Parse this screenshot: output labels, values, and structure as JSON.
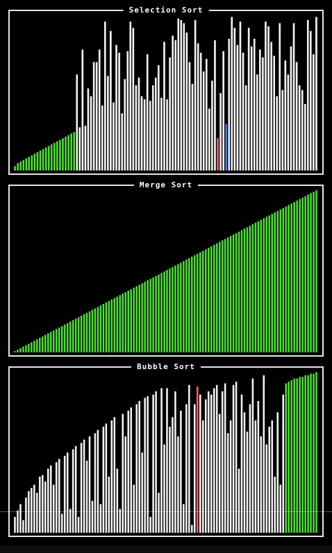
{
  "panels": [
    {
      "id": "selection",
      "title": "Selection Sort"
    },
    {
      "id": "merge",
      "title": "Merge Sort"
    },
    {
      "id": "bubble",
      "title": "Bubble Sort"
    }
  ],
  "colors": {
    "sorted": "#4fdc3a",
    "unsorted": "#f2f2f2",
    "compare": "#ff5c6a",
    "current": "#4a7cff",
    "border": "#e6e6e6",
    "background": "#000000"
  },
  "selection": {
    "sorted_count": 22,
    "compare_index": 72,
    "current_index": 75,
    "heights": [
      0.03,
      0.05,
      0.06,
      0.07,
      0.08,
      0.09,
      0.1,
      0.11,
      0.12,
      0.13,
      0.14,
      0.15,
      0.16,
      0.17,
      0.18,
      0.19,
      0.2,
      0.21,
      0.22,
      0.23,
      0.24,
      0.25,
      0.62,
      0.28,
      0.78,
      0.29,
      0.53,
      0.48,
      0.7,
      0.7,
      0.78,
      0.42,
      0.96,
      0.61,
      0.9,
      0.44,
      0.81,
      0.76,
      0.37,
      0.59,
      0.77,
      0.96,
      0.92,
      0.55,
      0.6,
      0.48,
      0.46,
      0.75,
      0.45,
      0.55,
      0.6,
      0.68,
      0.47,
      0.83,
      0.46,
      0.73,
      0.87,
      0.84,
      0.98,
      0.97,
      0.95,
      0.89,
      0.7,
      0.56,
      0.97,
      0.82,
      0.76,
      0.64,
      0.72,
      0.4,
      0.58,
      0.84,
      0.21,
      0.5,
      0.77,
      0.3,
      0.85,
      0.99,
      0.92,
      0.81,
      0.96,
      0.76,
      0.55,
      0.92,
      0.8,
      0.85,
      0.62,
      0.78,
      0.73,
      0.96,
      0.93,
      0.83,
      0.74,
      0.48,
      0.95,
      0.52,
      0.71,
      0.62,
      0.8,
      0.95,
      0.7,
      0.55,
      0.52,
      0.43,
      0.97,
      0.9,
      0.75,
      0.99
    ]
  },
  "merge": {
    "count": 110
  },
  "bubble": {
    "sorted_start": 98,
    "compare_index": 66,
    "heights": [
      0.1,
      0.14,
      0.18,
      0.08,
      0.22,
      0.26,
      0.28,
      0.3,
      0.25,
      0.35,
      0.36,
      0.32,
      0.4,
      0.42,
      0.3,
      0.44,
      0.46,
      0.12,
      0.48,
      0.5,
      0.15,
      0.52,
      0.54,
      0.1,
      0.56,
      0.58,
      0.45,
      0.6,
      0.2,
      0.62,
      0.64,
      0.18,
      0.66,
      0.68,
      0.35,
      0.7,
      0.72,
      0.4,
      0.15,
      0.74,
      0.6,
      0.76,
      0.78,
      0.3,
      0.8,
      0.82,
      0.5,
      0.84,
      0.85,
      0.1,
      0.86,
      0.88,
      0.25,
      0.9,
      0.55,
      0.9,
      0.66,
      0.72,
      0.88,
      0.6,
      0.76,
      0.18,
      0.8,
      0.92,
      0.05,
      0.8,
      0.91,
      0.86,
      0.7,
      0.83,
      0.88,
      0.86,
      0.9,
      0.92,
      0.74,
      0.88,
      0.93,
      0.62,
      0.7,
      0.92,
      0.94,
      0.4,
      0.86,
      0.75,
      0.63,
      0.8,
      0.96,
      0.7,
      0.82,
      0.6,
      0.98,
      0.55,
      0.66,
      0.7,
      0.35,
      0.75,
      0.3,
      0.86,
      0.93,
      0.94,
      0.95,
      0.96,
      0.96,
      0.97,
      0.97,
      0.98,
      0.98,
      0.99,
      0.99,
      1.0
    ]
  }
}
